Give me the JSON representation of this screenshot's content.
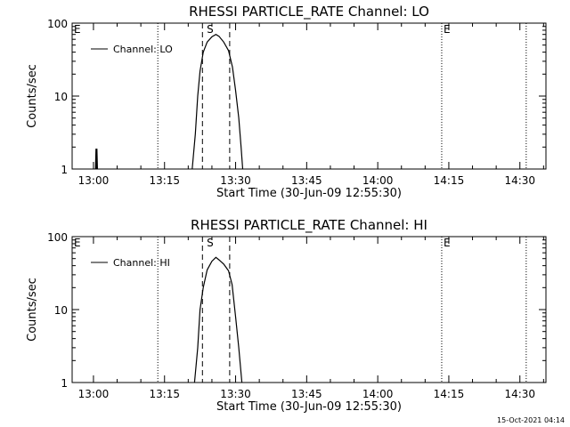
{
  "chart_data": [
    {
      "type": "line",
      "title": "RHESSI PARTICLE_RATE Channel: LO",
      "xlabel": "Start Time (30-Jun-09 12:55:30)",
      "ylabel": "Counts/sec",
      "y_scale": "log",
      "ylim": [
        1,
        100
      ],
      "xlim": [
        "12:55:30",
        "14:35:30"
      ],
      "x_ticks": [
        "13:00",
        "13:15",
        "13:30",
        "13:45",
        "14:00",
        "14:15",
        "14:30"
      ],
      "y_ticks": [
        "1",
        "10",
        "100"
      ],
      "legend": {
        "label": "Channel: LO",
        "position": "top-left"
      },
      "series": [
        {
          "name": "Channel: LO",
          "segments": [
            [
              {
                "x": "13:00:26",
                "y": 1
              },
              {
                "x": "13:00:32",
                "y": 1.9
              },
              {
                "x": "13:00:38",
                "y": 1
              },
              {
                "x": "13:00:44",
                "y": 1.9
              },
              {
                "x": "13:00:50",
                "y": 1
              }
            ],
            [
              {
                "x": "13:20:50",
                "y": 1
              },
              {
                "x": "13:21:30",
                "y": 3
              },
              {
                "x": "13:22:00",
                "y": 10
              },
              {
                "x": "13:22:30",
                "y": 22
              },
              {
                "x": "13:23:10",
                "y": 40
              },
              {
                "x": "13:24:00",
                "y": 55
              },
              {
                "x": "13:25:00",
                "y": 65
              },
              {
                "x": "13:25:50",
                "y": 70
              },
              {
                "x": "13:26:30",
                "y": 66
              },
              {
                "x": "13:27:30",
                "y": 55
              },
              {
                "x": "13:28:30",
                "y": 42
              },
              {
                "x": "13:29:20",
                "y": 25
              },
              {
                "x": "13:30:00",
                "y": 12
              },
              {
                "x": "13:30:40",
                "y": 5
              },
              {
                "x": "13:31:10",
                "y": 2
              },
              {
                "x": "13:31:30",
                "y": 1
              }
            ]
          ]
        }
      ],
      "markers": [
        {
          "label": "E",
          "x": "12:55:30",
          "style": "dotted"
        },
        {
          "label": "",
          "x": "13:13:35",
          "style": "dotted"
        },
        {
          "label": "S",
          "x": "13:24:40",
          "style": "none"
        },
        {
          "label": "",
          "x": "13:23:00",
          "style": "dashed"
        },
        {
          "label": "",
          "x": "13:28:45",
          "style": "dashed"
        },
        {
          "label": "E",
          "x": "14:13:30",
          "style": "dotted"
        },
        {
          "label": "",
          "x": "14:31:20",
          "style": "dotted"
        }
      ]
    },
    {
      "type": "line",
      "title": "RHESSI PARTICLE_RATE Channel: HI",
      "xlabel": "Start Time (30-Jun-09 12:55:30)",
      "ylabel": "Counts/sec",
      "y_scale": "log",
      "ylim": [
        1,
        100
      ],
      "xlim": [
        "12:55:30",
        "14:35:30"
      ],
      "x_ticks": [
        "13:00",
        "13:15",
        "13:30",
        "13:45",
        "14:00",
        "14:15",
        "14:30"
      ],
      "y_ticks": [
        "1",
        "10",
        "100"
      ],
      "legend": {
        "label": "Channel: HI",
        "position": "top-left"
      },
      "series": [
        {
          "name": "Channel: HI",
          "segments": [
            [
              {
                "x": "13:21:20",
                "y": 1
              },
              {
                "x": "13:22:00",
                "y": 3
              },
              {
                "x": "13:22:30",
                "y": 10
              },
              {
                "x": "13:23:10",
                "y": 20
              },
              {
                "x": "13:24:00",
                "y": 35
              },
              {
                "x": "13:25:00",
                "y": 46
              },
              {
                "x": "13:25:50",
                "y": 52
              },
              {
                "x": "13:26:30",
                "y": 48
              },
              {
                "x": "13:27:30",
                "y": 42
              },
              {
                "x": "13:28:30",
                "y": 34
              },
              {
                "x": "13:29:15",
                "y": 22
              },
              {
                "x": "13:30:00",
                "y": 8
              },
              {
                "x": "13:30:40",
                "y": 3
              },
              {
                "x": "13:31:20",
                "y": 1
              }
            ]
          ]
        }
      ],
      "markers": [
        {
          "label": "E",
          "x": "12:55:30",
          "style": "dotted"
        },
        {
          "label": "",
          "x": "13:13:35",
          "style": "dotted"
        },
        {
          "label": "S",
          "x": "13:24:40",
          "style": "none"
        },
        {
          "label": "",
          "x": "13:23:00",
          "style": "dashed"
        },
        {
          "label": "",
          "x": "13:28:45",
          "style": "dashed"
        },
        {
          "label": "E",
          "x": "14:13:30",
          "style": "dotted"
        },
        {
          "label": "",
          "x": "14:31:20",
          "style": "dotted"
        }
      ]
    }
  ],
  "footer": {
    "timestamp": "15-Oct-2021 04:14"
  }
}
